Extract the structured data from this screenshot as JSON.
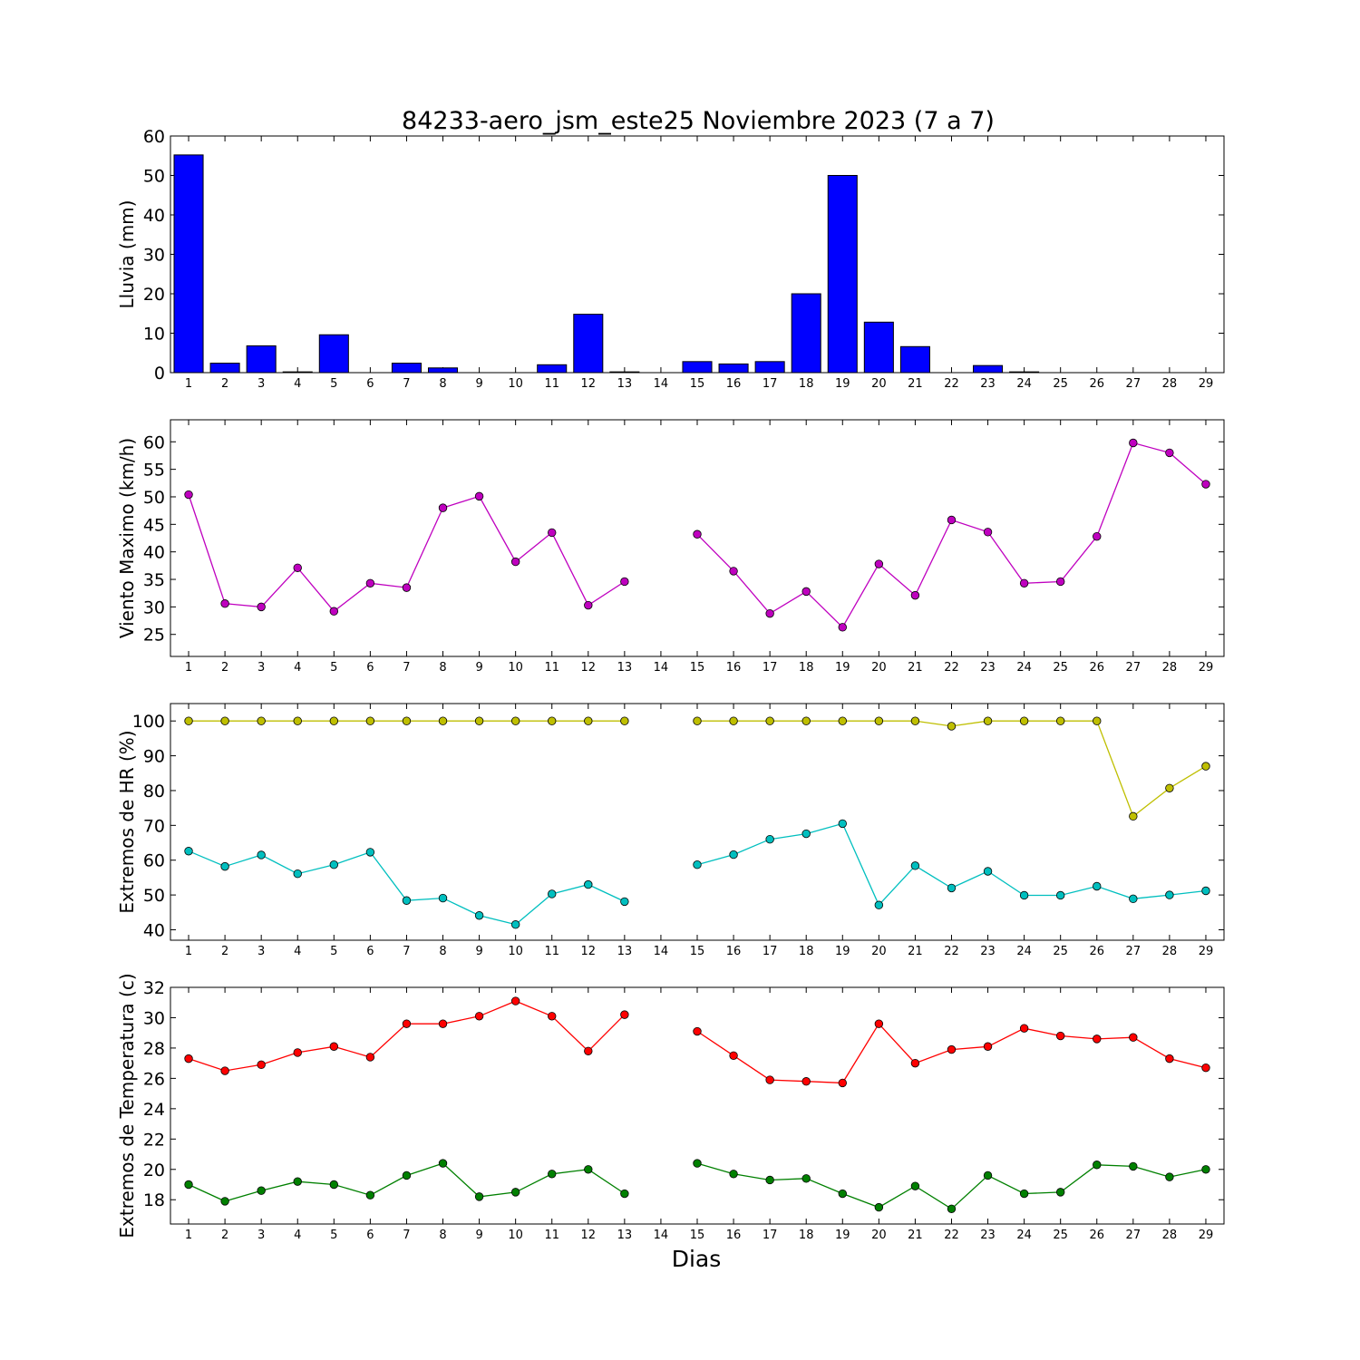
{
  "title": "84233-aero_jsm_este25 Noviembre 2023  (7 a 7)",
  "xlabel": "Dias",
  "chart_data": [
    {
      "type": "bar",
      "ylabel": "Lluvia (mm)",
      "ylim": [
        0,
        60
      ],
      "yticks": [
        0,
        10,
        20,
        30,
        40,
        50,
        60
      ],
      "x": [
        1,
        2,
        3,
        4,
        5,
        6,
        7,
        8,
        9,
        10,
        11,
        12,
        13,
        14,
        15,
        16,
        17,
        18,
        19,
        20,
        21,
        22,
        23,
        24,
        25,
        26,
        27,
        28,
        29
      ],
      "xlim": [
        0.5,
        29.5
      ],
      "color": "#0000ff",
      "series": [
        {
          "values": [
            55.2,
            2.4,
            6.8,
            0.2,
            9.6,
            0,
            2.4,
            1.2,
            0,
            0,
            2.0,
            14.8,
            0.2,
            0,
            2.8,
            2.2,
            2.8,
            20.0,
            50.0,
            12.8,
            6.6,
            0,
            1.8,
            0.2,
            0,
            0,
            0,
            0,
            0
          ]
        }
      ]
    },
    {
      "type": "line",
      "ylabel": "Viento Maximo (km/h)",
      "ylim": [
        21,
        64
      ],
      "yticks": [
        25,
        30,
        35,
        40,
        45,
        50,
        55,
        60
      ],
      "x": [
        1,
        2,
        3,
        4,
        5,
        6,
        7,
        8,
        9,
        10,
        11,
        12,
        13,
        14,
        15,
        16,
        17,
        18,
        19,
        20,
        21,
        22,
        23,
        24,
        25,
        26,
        27,
        28,
        29
      ],
      "xlim": [
        0.5,
        29.5
      ],
      "series": [
        {
          "color": "#bf00bf",
          "values": [
            50.4,
            30.6,
            30.0,
            37.1,
            29.2,
            34.3,
            33.5,
            48.0,
            50.1,
            38.2,
            43.5,
            30.3,
            34.6,
            null,
            43.2,
            36.5,
            28.8,
            32.8,
            26.3,
            37.8,
            32.1,
            45.8,
            43.6,
            34.3,
            34.6,
            42.8,
            59.8,
            58.0,
            52.3
          ]
        }
      ]
    },
    {
      "type": "line",
      "ylabel": "Extremos de HR (%)",
      "ylim": [
        37,
        105
      ],
      "yticks": [
        40,
        50,
        60,
        70,
        80,
        90,
        100
      ],
      "x": [
        1,
        2,
        3,
        4,
        5,
        6,
        7,
        8,
        9,
        10,
        11,
        12,
        13,
        14,
        15,
        16,
        17,
        18,
        19,
        20,
        21,
        22,
        23,
        24,
        25,
        26,
        27,
        28,
        29
      ],
      "xlim": [
        0.5,
        29.5
      ],
      "series": [
        {
          "color": "#bfbf00",
          "values": [
            100,
            100,
            100,
            100,
            100,
            100,
            100,
            100,
            100,
            100,
            100,
            100,
            100,
            null,
            100,
            100,
            100,
            100,
            100,
            100,
            100,
            98.5,
            100,
            100,
            100,
            100,
            72.6,
            80.7,
            87.0
          ]
        },
        {
          "color": "#00bfbf",
          "values": [
            62.6,
            58.2,
            61.5,
            56.1,
            58.7,
            62.3,
            48.4,
            49.1,
            44.1,
            41.5,
            50.3,
            53.0,
            48.1,
            null,
            58.7,
            61.6,
            66.0,
            67.6,
            70.5,
            47.1,
            58.4,
            52.0,
            56.8,
            49.9,
            49.9,
            52.5,
            48.9,
            50.0,
            51.2
          ]
        }
      ]
    },
    {
      "type": "line",
      "ylabel": "Extremos de Temperatura (c)",
      "ylim": [
        16.4,
        32
      ],
      "yticks": [
        18,
        20,
        22,
        24,
        26,
        28,
        30,
        32
      ],
      "x": [
        1,
        2,
        3,
        4,
        5,
        6,
        7,
        8,
        9,
        10,
        11,
        12,
        13,
        14,
        15,
        16,
        17,
        18,
        19,
        20,
        21,
        22,
        23,
        24,
        25,
        26,
        27,
        28,
        29
      ],
      "xlim": [
        0.5,
        29.5
      ],
      "series": [
        {
          "color": "#ff0000",
          "values": [
            27.3,
            26.5,
            26.9,
            27.7,
            28.1,
            27.4,
            29.6,
            29.6,
            30.1,
            31.1,
            30.1,
            27.8,
            30.2,
            null,
            29.1,
            27.5,
            25.9,
            25.8,
            25.7,
            29.6,
            27.0,
            27.9,
            28.1,
            29.3,
            28.8,
            28.6,
            28.7,
            27.3,
            26.7
          ]
        },
        {
          "color": "#008000",
          "values": [
            19.0,
            17.9,
            18.6,
            19.2,
            19.0,
            18.3,
            19.6,
            20.4,
            18.2,
            18.5,
            19.7,
            20.0,
            18.4,
            null,
            20.4,
            19.7,
            19.3,
            19.4,
            18.4,
            17.5,
            18.9,
            17.4,
            19.6,
            18.4,
            18.5,
            20.3,
            20.2,
            19.5,
            20.0
          ]
        }
      ]
    }
  ]
}
